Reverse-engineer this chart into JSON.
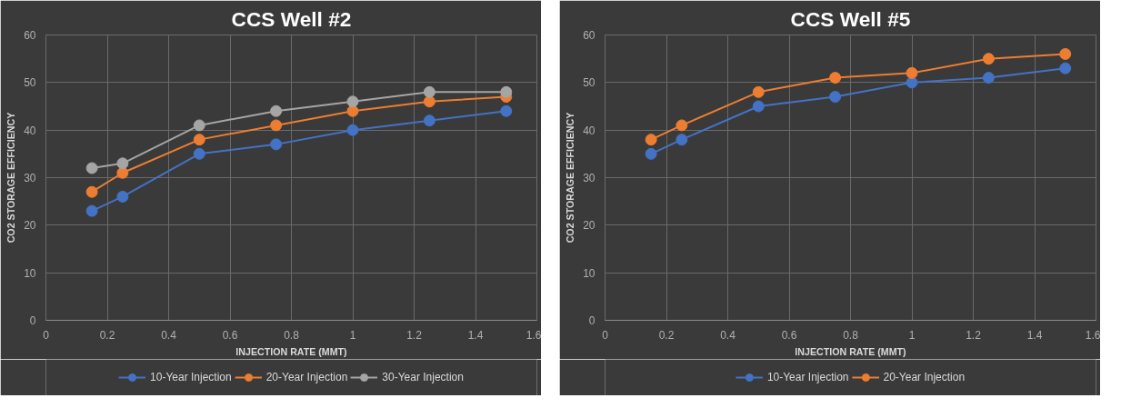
{
  "chart_data": [
    {
      "type": "line",
      "title": "CCS Well #2",
      "xlabel": "INJECTION RATE (MMT)",
      "ylabel": "CO2 STORAGE EFFICIENCY",
      "x": [
        0.15,
        0.25,
        0.5,
        0.75,
        1,
        1.25,
        1.5
      ],
      "series": [
        {
          "name": "10-Year Injection",
          "color": "#4472c4",
          "values": [
            23,
            26,
            35,
            37,
            40,
            42,
            44
          ]
        },
        {
          "name": "20-Year Injection",
          "color": "#ed7d31",
          "values": [
            27,
            31,
            38,
            41,
            44,
            46,
            47
          ]
        },
        {
          "name": "30-Year Injection",
          "color": "#a5a5a5",
          "values": [
            32,
            33,
            41,
            44,
            46,
            48,
            48
          ]
        }
      ],
      "xlim": [
        0,
        1.6
      ],
      "xticks": [
        0,
        0.2,
        0.4,
        0.6,
        0.8,
        1,
        1.2,
        1.4,
        1.6
      ],
      "ylim": [
        0,
        60
      ],
      "yticks": [
        0,
        10,
        20,
        30,
        40,
        50,
        60
      ],
      "grid": true,
      "legend": "bottom",
      "marker": "circle",
      "line_style": "solid"
    },
    {
      "type": "line",
      "title": "CCS Well #5",
      "xlabel": "INJECTION RATE (MMT)",
      "ylabel": "CO2 STORAGE EFFICIENCY",
      "x": [
        0.15,
        0.25,
        0.5,
        0.75,
        1,
        1.25,
        1.5
      ],
      "series": [
        {
          "name": "10-Year Injection",
          "color": "#4472c4",
          "values": [
            35,
            38,
            45,
            47,
            50,
            51,
            53
          ]
        },
        {
          "name": "20-Year Injection",
          "color": "#ed7d31",
          "values": [
            38,
            41,
            48,
            51,
            52,
            55,
            56
          ]
        }
      ],
      "xlim": [
        0,
        1.6
      ],
      "xticks": [
        0,
        0.2,
        0.4,
        0.6,
        0.8,
        1,
        1.2,
        1.4,
        1.6
      ],
      "ylim": [
        0,
        60
      ],
      "yticks": [
        0,
        10,
        20,
        30,
        40,
        50,
        60
      ],
      "grid": true,
      "legend": "bottom",
      "marker": "circle",
      "line_style": "solid"
    }
  ]
}
